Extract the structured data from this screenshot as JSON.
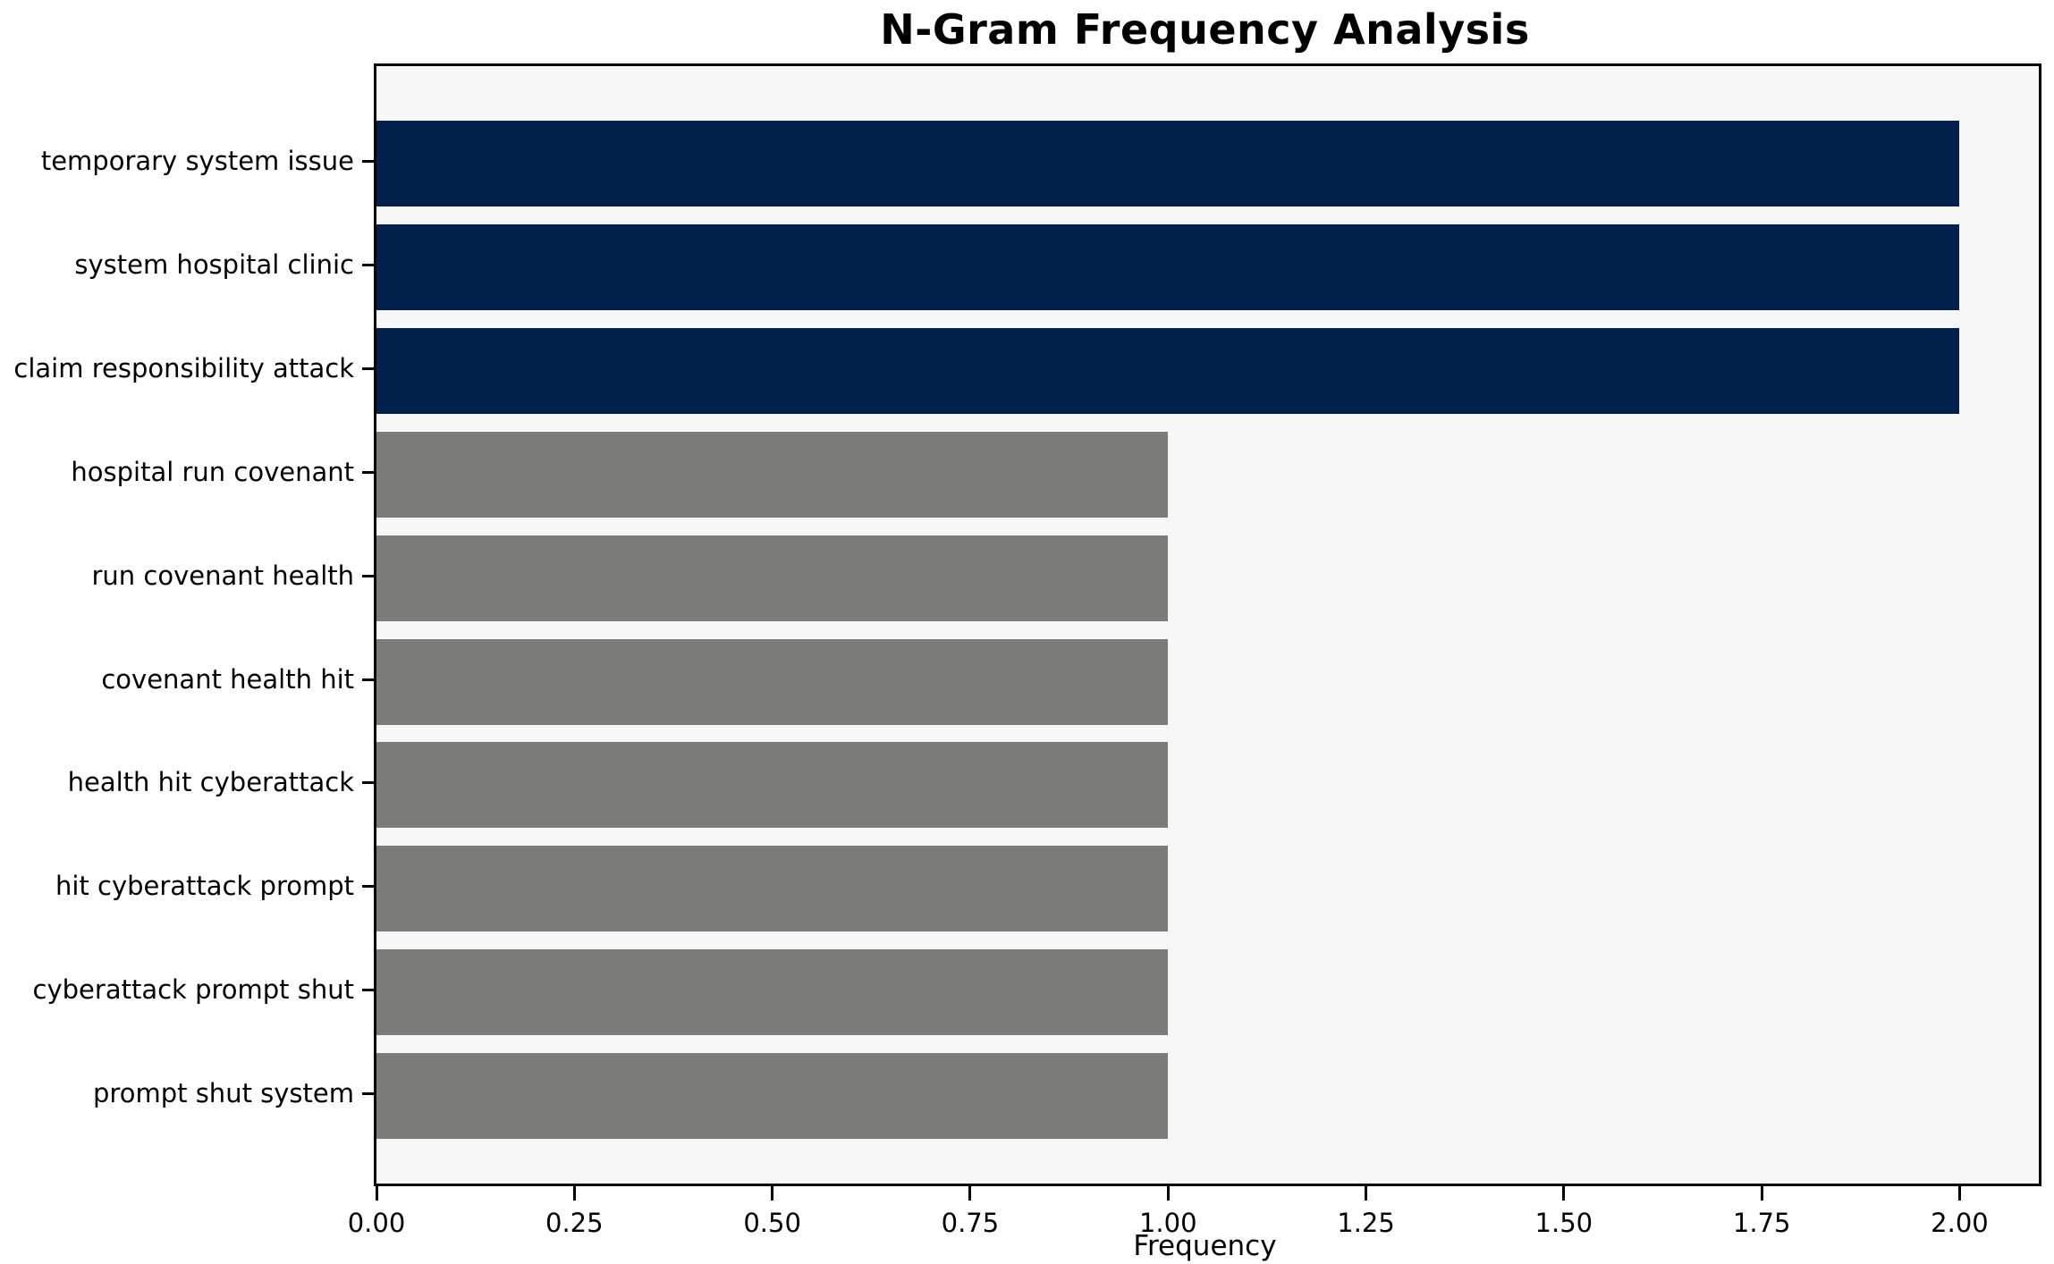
{
  "chart_data": {
    "type": "bar",
    "orientation": "horizontal",
    "title": "N-Gram Frequency Analysis",
    "xlabel": "Frequency",
    "ylabel": "",
    "categories": [
      "temporary system issue",
      "system hospital clinic",
      "claim responsibility attack",
      "hospital run covenant",
      "run covenant health",
      "covenant health hit",
      "health hit cyberattack",
      "hit cyberattack prompt",
      "cyberattack prompt shut",
      "prompt shut system"
    ],
    "values": [
      2,
      2,
      2,
      1,
      1,
      1,
      1,
      1,
      1,
      1
    ],
    "bar_colors": [
      "#02224d",
      "#02224d",
      "#02224d",
      "#7b7b78",
      "#7b7b78",
      "#7b7b78",
      "#7b7b78",
      "#7b7b78",
      "#7b7b78",
      "#7b7b78"
    ],
    "xlim": [
      0,
      2.1
    ],
    "xtick_values": [
      0,
      0.25,
      0.5,
      0.75,
      1.0,
      1.25,
      1.5,
      1.75,
      2.0
    ],
    "xtick_labels": [
      "0.00",
      "0.25",
      "0.50",
      "0.75",
      "1.00",
      "1.25",
      "1.50",
      "1.75",
      "2.00"
    ],
    "grid": false,
    "legend": null,
    "colors": {
      "bar_high": "#02224d",
      "bar_low": "#7b7b78",
      "plot_background": "#f7f7f7",
      "figure_background": "#ffffff",
      "spine": "#000000",
      "text": "#000000"
    }
  }
}
